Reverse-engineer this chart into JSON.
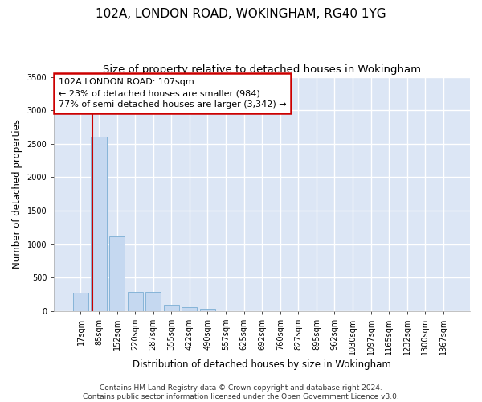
{
  "title": "102A, LONDON ROAD, WOKINGHAM, RG40 1YG",
  "subtitle": "Size of property relative to detached houses in Wokingham",
  "xlabel": "Distribution of detached houses by size in Wokingham",
  "ylabel": "Number of detached properties",
  "bar_categories": [
    "17sqm",
    "85sqm",
    "152sqm",
    "220sqm",
    "287sqm",
    "355sqm",
    "422sqm",
    "490sqm",
    "557sqm",
    "625sqm",
    "692sqm",
    "760sqm",
    "827sqm",
    "895sqm",
    "962sqm",
    "1030sqm",
    "1097sqm",
    "1165sqm",
    "1232sqm",
    "1300sqm",
    "1367sqm"
  ],
  "bar_values": [
    270,
    2600,
    1120,
    285,
    285,
    100,
    55,
    35,
    0,
    0,
    0,
    0,
    0,
    0,
    0,
    0,
    0,
    0,
    0,
    0,
    0
  ],
  "bar_color": "#c5d8f0",
  "bar_edge_color": "#7aadd4",
  "vline_color": "#cc0000",
  "annotation_text": "102A LONDON ROAD: 107sqm\n← 23% of detached houses are smaller (984)\n77% of semi-detached houses are larger (3,342) →",
  "annotation_box_color": "#ffffff",
  "annotation_box_edge": "#cc0000",
  "ylim": [
    0,
    3500
  ],
  "yticks": [
    0,
    500,
    1000,
    1500,
    2000,
    2500,
    3000,
    3500
  ],
  "bg_color": "#dce6f5",
  "grid_color": "#ffffff",
  "footer": "Contains HM Land Registry data © Crown copyright and database right 2024.\nContains public sector information licensed under the Open Government Licence v3.0.",
  "title_fontsize": 11,
  "subtitle_fontsize": 9.5,
  "xlabel_fontsize": 8.5,
  "ylabel_fontsize": 8.5,
  "tick_fontsize": 7,
  "annotation_fontsize": 8,
  "footer_fontsize": 6.5
}
